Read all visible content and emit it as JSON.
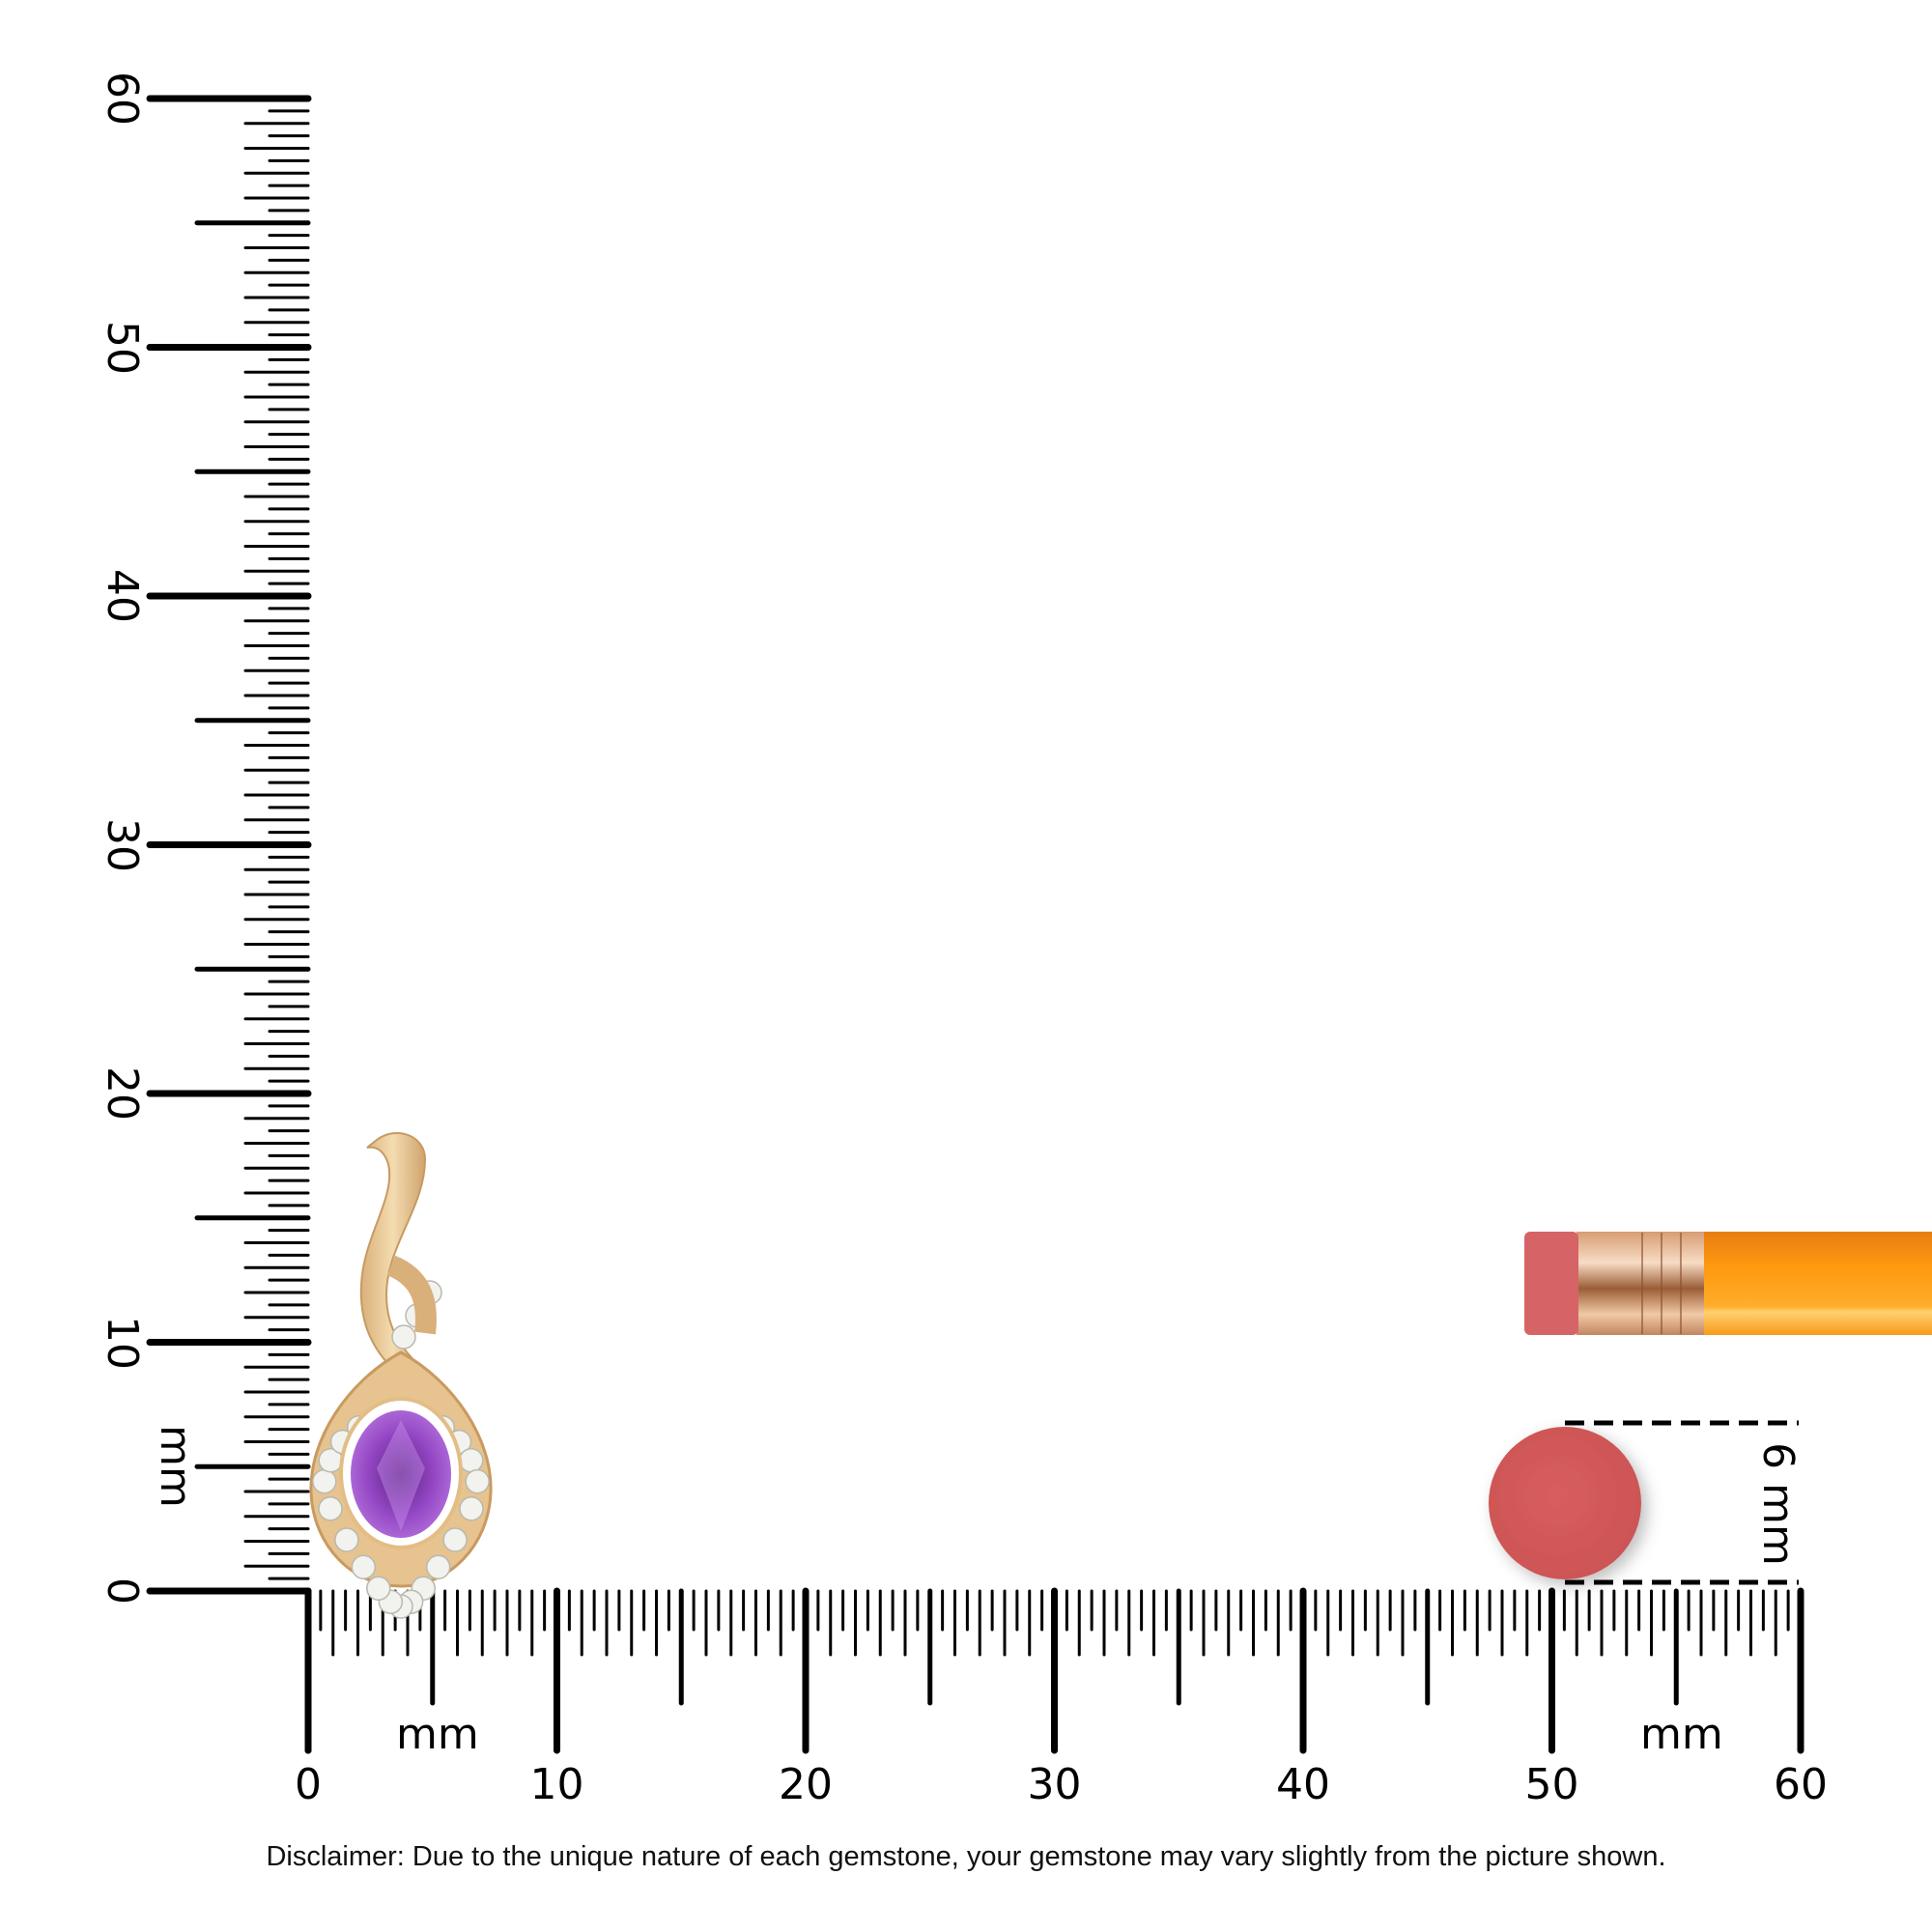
{
  "rulers": {
    "unit_label": "mm",
    "horizontal": {
      "min": 0,
      "max": 60,
      "labels": [
        "0",
        "10",
        "20",
        "30",
        "40",
        "50",
        "60"
      ]
    },
    "vertical": {
      "min": 0,
      "max": 60,
      "labels": [
        "0",
        "10",
        "20",
        "30",
        "40",
        "50",
        "60"
      ]
    }
  },
  "reference": {
    "object": "pencil eraser",
    "diameter_label": "6 mm",
    "eraser_color": "#d45a5a",
    "pencil_color": "#f7941d"
  },
  "product": {
    "gemstone_color": "#8a3fb5",
    "metal_color": "#e8c48e"
  },
  "disclaimer": "Disclaimer: Due to the unique nature of each gemstone, your gemstone may vary slightly from the picture shown."
}
